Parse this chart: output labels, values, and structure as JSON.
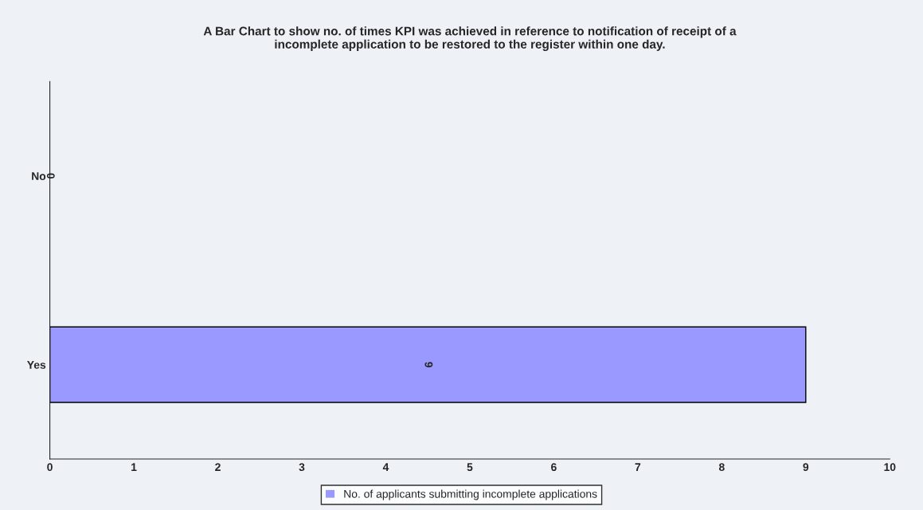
{
  "chart_data": {
    "type": "bar",
    "orientation": "horizontal",
    "title": "A Bar Chart to show no. of times KPI was achieved in reference to notification of receipt of a\nincomplete application to be restored to the register within one day.",
    "categories": [
      "No",
      "Yes"
    ],
    "series": [
      {
        "name": "No. of applicants submitting incomplete applications",
        "color": "#9999ff",
        "values": [
          0,
          9
        ]
      }
    ],
    "xlim": [
      0,
      10
    ],
    "xticks": [
      0,
      1,
      2,
      3,
      4,
      5,
      6,
      7,
      8,
      9,
      10
    ],
    "data_labels": true,
    "grid": false,
    "legend": "bottom"
  }
}
